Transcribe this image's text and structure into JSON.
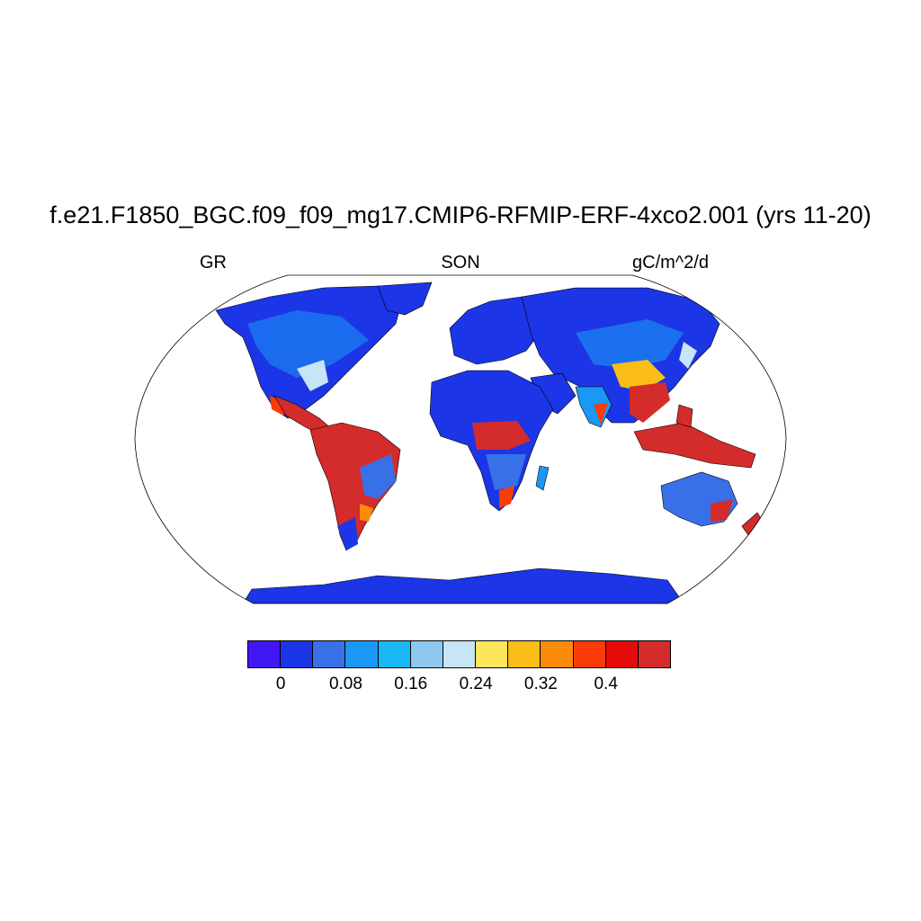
{
  "title": "f.e21.F1850_BGC.f09_f09_mg17.CMIP6-RFMIP-ERF-4xco2.001 (yrs 11-20)",
  "left_label": "GR",
  "center_label": "SON",
  "right_label": "gC/m^2/d",
  "colorbar": {
    "colors": [
      "#4216f5",
      "#1c35e6",
      "#3870e8",
      "#1b97f5",
      "#17b8f5",
      "#8ec8f0",
      "#c6e5f7",
      "#fde55c",
      "#fbbd17",
      "#fb8b0a",
      "#fb3b08",
      "#e50b0b",
      "#d42b2b"
    ],
    "tick_labels": [
      "0",
      "0.08",
      "0.16",
      "0.24",
      "0.32",
      "0.4"
    ]
  },
  "map": {
    "projection": "robinson",
    "ocean_color": "#ffffff",
    "low_color": "#1c35e6"
  }
}
